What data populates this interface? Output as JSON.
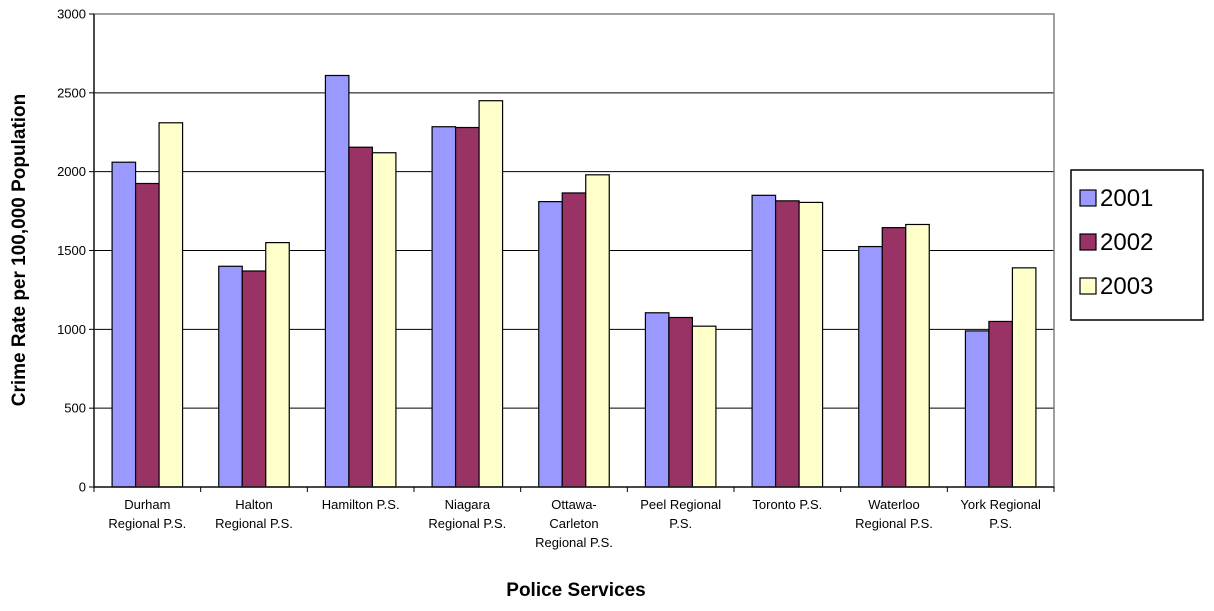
{
  "chart_data": {
    "type": "bar",
    "title": "",
    "xlabel": "Police Services",
    "ylabel": "Crime Rate per 100,000 Population",
    "ylim": [
      0,
      3000
    ],
    "yticks": [
      0,
      500,
      1000,
      1500,
      2000,
      2500,
      3000
    ],
    "grid": true,
    "legend_position": "right",
    "categories": [
      [
        "Durham",
        "Regional P.S."
      ],
      [
        "Halton",
        "Regional P.S."
      ],
      [
        "Hamilton P.S."
      ],
      [
        "Niagara",
        "Regional P.S."
      ],
      [
        "Ottawa-",
        "Carleton",
        "Regional P.S."
      ],
      [
        "Peel Regional",
        "P.S."
      ],
      [
        "Toronto P.S."
      ],
      [
        "Waterloo",
        "Regional P.S."
      ],
      [
        "York Regional",
        "P.S."
      ]
    ],
    "series": [
      {
        "name": "2001",
        "color": "#9999ff",
        "values": [
          2060,
          1400,
          2610,
          2285,
          1810,
          1105,
          1850,
          1525,
          990
        ]
      },
      {
        "name": "2002",
        "color": "#993366",
        "values": [
          1925,
          1370,
          2155,
          2280,
          1865,
          1075,
          1815,
          1645,
          1050
        ]
      },
      {
        "name": "2003",
        "color": "#ffffcc",
        "values": [
          2310,
          1550,
          2120,
          2450,
          1980,
          1020,
          1805,
          1665,
          1390
        ]
      }
    ]
  }
}
